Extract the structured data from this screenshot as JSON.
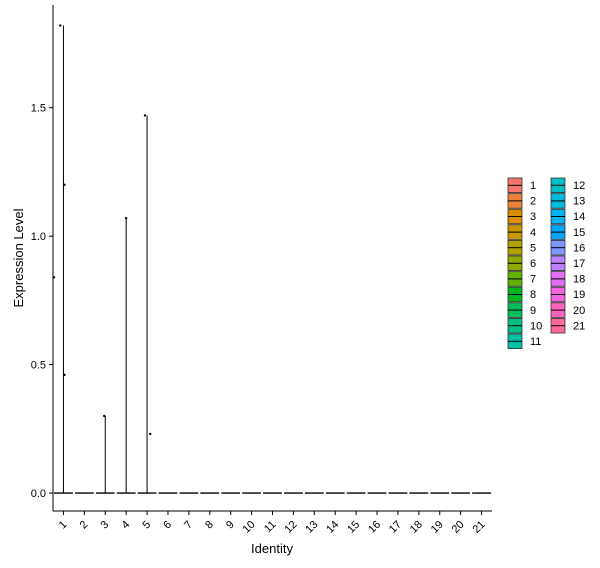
{
  "chart_data": {
    "type": "violin",
    "title": "",
    "xlabel": "Identity",
    "ylabel": "Expression Level",
    "ylim": [
      -0.07,
      1.9
    ],
    "yticks": [
      0.0,
      0.5,
      1.0,
      1.5
    ],
    "ytick_labels": [
      "0.0",
      "0.5",
      "1.0",
      "1.5"
    ],
    "grid": false,
    "legend_position": "right",
    "legend_columns": 2,
    "categories": [
      "1",
      "2",
      "3",
      "4",
      "5",
      "6",
      "7",
      "8",
      "9",
      "10",
      "11",
      "12",
      "13",
      "14",
      "15",
      "16",
      "17",
      "18",
      "19",
      "20",
      "21"
    ],
    "colors": [
      "#F8766D",
      "#EC8239",
      "#DB8E00",
      "#C79800",
      "#AEA200",
      "#8FAA00",
      "#64B200",
      "#00B81B",
      "#00BD5C",
      "#00C085",
      "#00C1A7",
      "#00BFC4",
      "#00BADE",
      "#00B2F3",
      "#00A6FF",
      "#7F96FF",
      "#BC81FF",
      "#E26EF7",
      "#F863DF",
      "#FF62BF",
      "#FF6A9A"
    ],
    "violins": [
      {
        "category": "1",
        "max": 1.82
      },
      {
        "category": "2",
        "max": 0.0
      },
      {
        "category": "3",
        "max": 0.3
      },
      {
        "category": "4",
        "max": 1.07
      },
      {
        "category": "5",
        "max": 1.47
      },
      {
        "category": "6",
        "max": 0.0
      },
      {
        "category": "7",
        "max": 0.0
      },
      {
        "category": "8",
        "max": 0.0
      },
      {
        "category": "9",
        "max": 0.0
      },
      {
        "category": "10",
        "max": 0.0
      },
      {
        "category": "11",
        "max": 0.0
      },
      {
        "category": "12",
        "max": 0.0
      },
      {
        "category": "13",
        "max": 0.0
      },
      {
        "category": "14",
        "max": 0.0
      },
      {
        "category": "15",
        "max": 0.0
      },
      {
        "category": "16",
        "max": 0.0
      },
      {
        "category": "17",
        "max": 0.0
      },
      {
        "category": "18",
        "max": 0.0
      },
      {
        "category": "19",
        "max": 0.0
      },
      {
        "category": "20",
        "max": 0.0
      },
      {
        "category": "21",
        "max": 0.0
      }
    ],
    "points": [
      {
        "category": "1",
        "y": 1.82,
        "jitter": -0.15
      },
      {
        "category": "1",
        "y": 1.2,
        "jitter": 0.05
      },
      {
        "category": "1",
        "y": 0.84,
        "jitter": -0.45
      },
      {
        "category": "1",
        "y": 0.46,
        "jitter": 0.05
      },
      {
        "category": "3",
        "y": 0.3,
        "jitter": -0.05
      },
      {
        "category": "4",
        "y": 1.07,
        "jitter": 0.0
      },
      {
        "category": "5",
        "y": 1.47,
        "jitter": -0.1
      },
      {
        "category": "5",
        "y": 0.23,
        "jitter": 0.15
      }
    ]
  }
}
